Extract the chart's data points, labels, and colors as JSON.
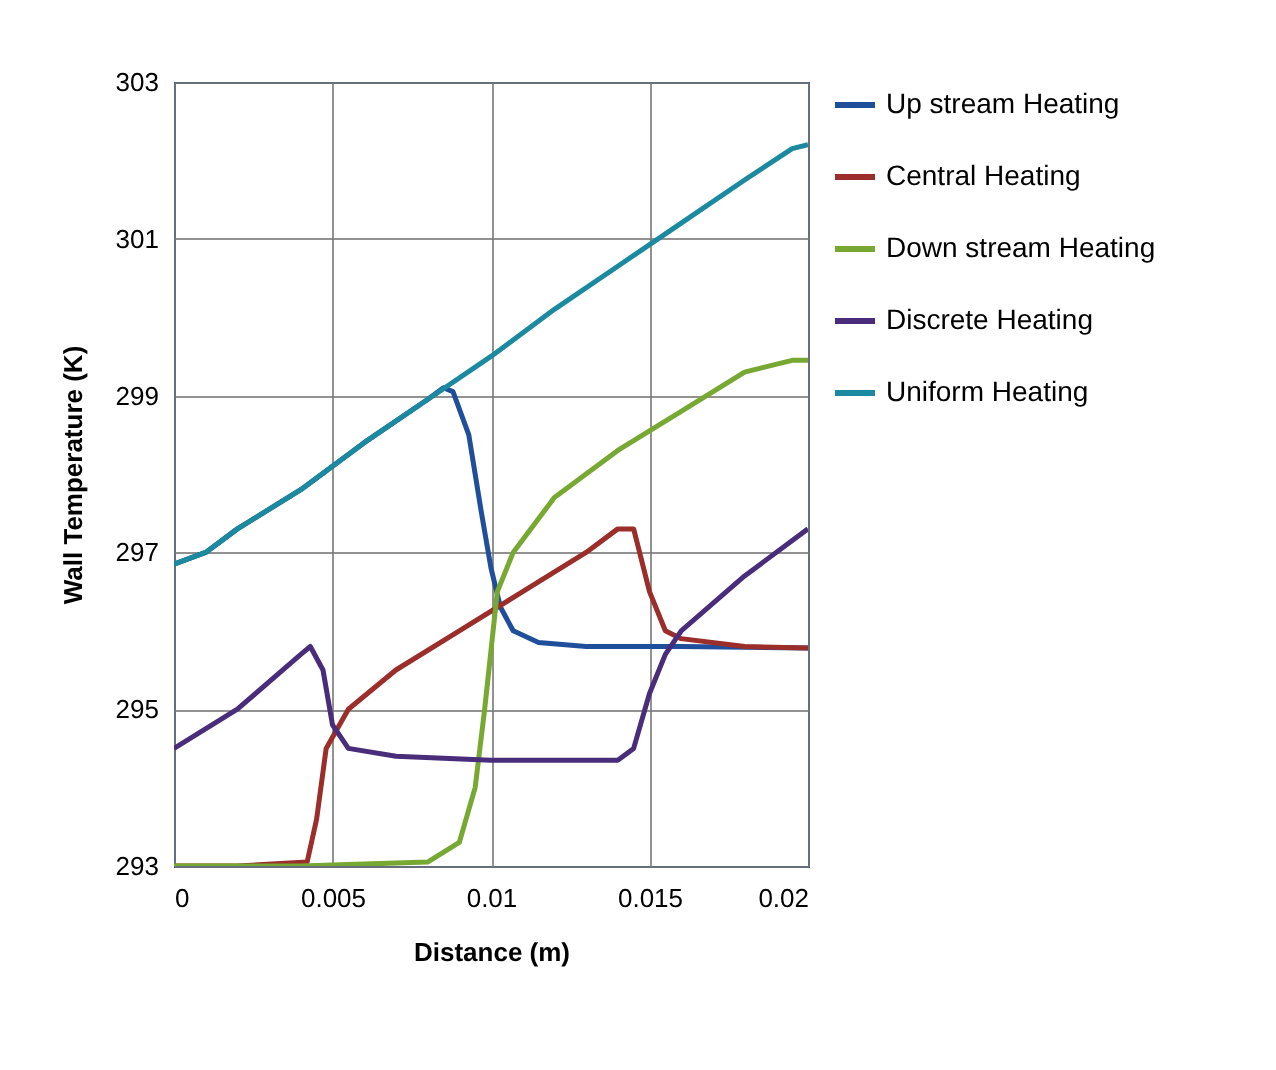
{
  "chart_data": {
    "type": "line",
    "xlabel": "Distance (m)",
    "ylabel": "Wall Temperature (K)",
    "xlim": [
      0,
      0.02
    ],
    "xticks": [
      0,
      0.005,
      0.01,
      0.015,
      0.02
    ],
    "ylim": [
      293,
      303
    ],
    "yticks": [
      293,
      295,
      297,
      299,
      301,
      303
    ],
    "grid": true,
    "legend": "right",
    "series": [
      {
        "name": "Up stream Heating",
        "color": "#1f4f9a",
        "x": [
          0,
          0.001,
          0.002,
          0.004,
          0.006,
          0.008,
          0.0085,
          0.0088,
          0.0093,
          0.0097,
          0.01,
          0.0103,
          0.0107,
          0.0115,
          0.013,
          0.016,
          0.02
        ],
        "values": [
          296.85,
          297.0,
          297.3,
          297.8,
          298.4,
          298.95,
          299.1,
          299.05,
          298.5,
          297.5,
          296.8,
          296.3,
          296.0,
          295.85,
          295.8,
          295.8,
          295.78
        ]
      },
      {
        "name": "Central Heating",
        "color": "#9b2d2a",
        "x": [
          0,
          0.002,
          0.0042,
          0.0045,
          0.0048,
          0.0055,
          0.007,
          0.009,
          0.011,
          0.013,
          0.014,
          0.0145,
          0.015,
          0.0155,
          0.016,
          0.018,
          0.02
        ],
        "values": [
          293,
          293,
          293.05,
          293.6,
          294.5,
          295.0,
          295.5,
          296.0,
          296.5,
          297.0,
          297.3,
          297.3,
          296.5,
          296.0,
          295.9,
          295.8,
          295.78
        ]
      },
      {
        "name": "Down stream Heating",
        "color": "#77a832",
        "x": [
          0,
          0.004,
          0.008,
          0.009,
          0.0095,
          0.0098,
          0.0102,
          0.0107,
          0.012,
          0.014,
          0.016,
          0.018,
          0.0195,
          0.02
        ],
        "values": [
          293,
          293,
          293.05,
          293.3,
          294.0,
          295.0,
          296.5,
          297.0,
          297.7,
          298.3,
          298.8,
          299.3,
          299.45,
          299.45
        ]
      },
      {
        "name": "Discrete Heating",
        "color": "#4a2d7a",
        "x": [
          0,
          0.002,
          0.004,
          0.0043,
          0.0047,
          0.005,
          0.0055,
          0.007,
          0.01,
          0.014,
          0.0145,
          0.015,
          0.0155,
          0.016,
          0.018,
          0.02
        ],
        "values": [
          294.5,
          295.0,
          295.7,
          295.8,
          295.5,
          294.8,
          294.5,
          294.4,
          294.35,
          294.35,
          294.5,
          295.2,
          295.7,
          296.0,
          296.7,
          297.3
        ]
      },
      {
        "name": "Uniform Heating",
        "color": "#1b8aa0",
        "x": [
          0,
          0.001,
          0.002,
          0.004,
          0.006,
          0.008,
          0.01,
          0.012,
          0.014,
          0.016,
          0.018,
          0.0195,
          0.02
        ],
        "values": [
          296.85,
          297.0,
          297.3,
          297.8,
          298.4,
          298.95,
          299.5,
          300.1,
          300.65,
          301.2,
          301.75,
          302.15,
          302.2
        ]
      }
    ]
  }
}
